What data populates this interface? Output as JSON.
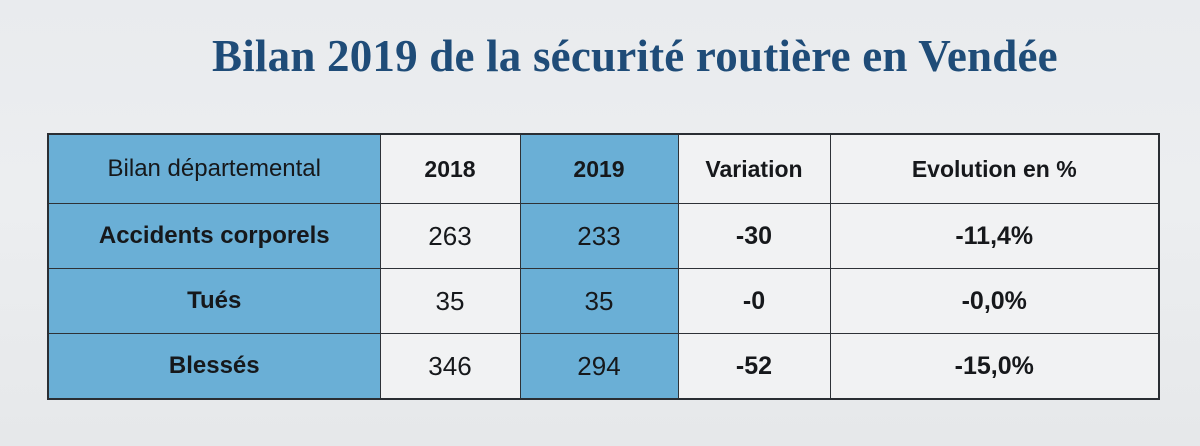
{
  "title": "Bilan 2019 de la sécurité routière en Vendée",
  "colors": {
    "title": "#1f4c78",
    "highlight": "#6aafd6",
    "paper": "#eceef0",
    "border": "#2e3237"
  },
  "table": {
    "headers": [
      "Bilan départemental",
      "2018",
      "2019",
      "Variation",
      "Evolution en %"
    ],
    "rows": [
      [
        "Accidents corporels",
        "263",
        "233",
        "-30",
        "-11,4%"
      ],
      [
        "Tués",
        "35",
        "35",
        "-0",
        "-0,0%"
      ],
      [
        "Blessés",
        "346",
        "294",
        "-52",
        "-15,0%"
      ]
    ]
  }
}
